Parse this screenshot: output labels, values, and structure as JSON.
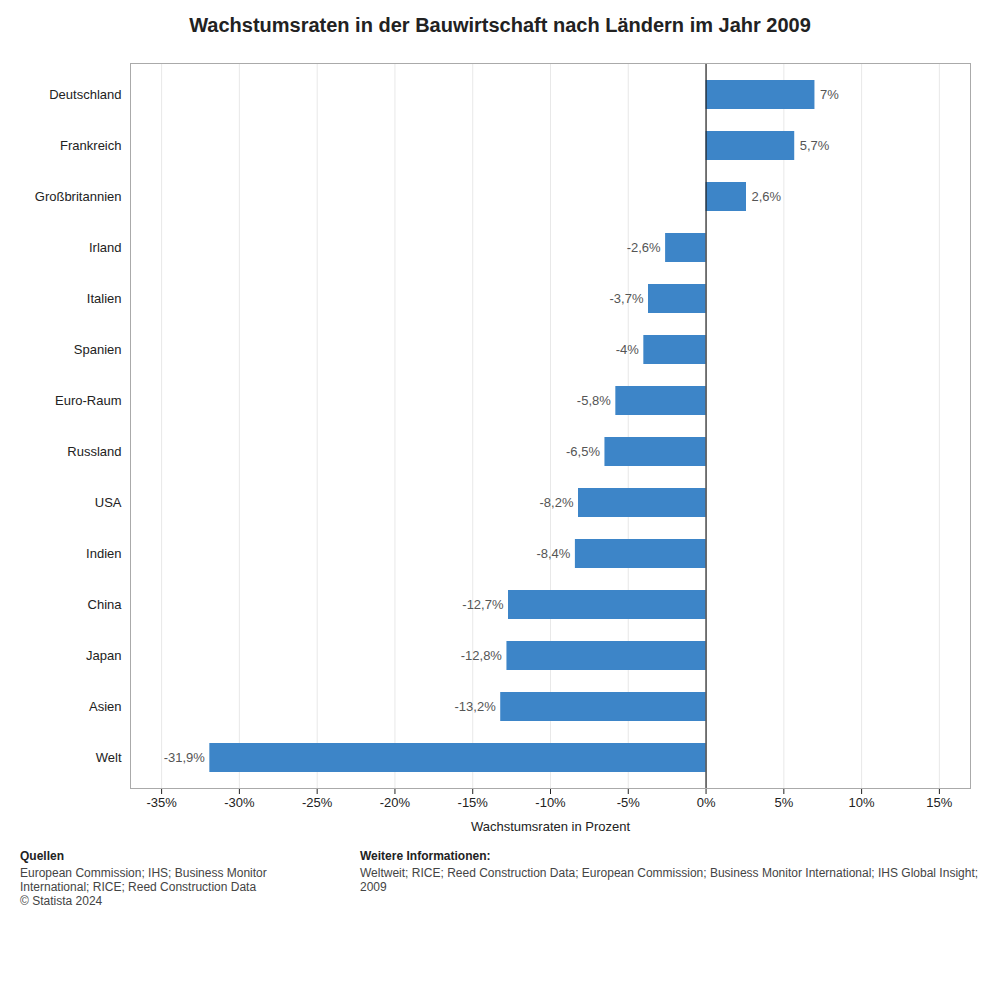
{
  "chart_data": {
    "type": "bar",
    "orientation": "horizontal",
    "title": "Wachstumsraten in der Bauwirtschaft nach Ländern im Jahr 2009",
    "categories": [
      "Deutschland",
      "Frankreich",
      "Großbritannien",
      "Irland",
      "Italien",
      "Spanien",
      "Euro-Raum",
      "Russland",
      "USA",
      "Indien",
      "China",
      "Japan",
      "Asien",
      "Welt"
    ],
    "values": [
      7.0,
      5.7,
      2.6,
      -2.6,
      -3.7,
      -4.0,
      -5.8,
      -6.5,
      -8.2,
      -8.4,
      -12.7,
      -12.8,
      -13.2,
      -31.9
    ],
    "value_labels": [
      "7%",
      "5,7%",
      "2,6%",
      "-2,6%",
      "-3,7%",
      "-4%",
      "-5,8%",
      "-6,5%",
      "-8,2%",
      "-8,4%",
      "-12,7%",
      "-12,8%",
      "-13,2%",
      "-31,9%"
    ],
    "data_labels": true,
    "color": "#3d85c8",
    "xlabel": "Wachstumsraten in Prozent",
    "xlim": [
      -37,
      17
    ],
    "xticks": [
      {
        "value": -35,
        "label": "-35%"
      },
      {
        "value": -30,
        "label": "-30%"
      },
      {
        "value": -25,
        "label": "-25%"
      },
      {
        "value": -20,
        "label": "-20%"
      },
      {
        "value": -15,
        "label": "-15%"
      },
      {
        "value": -10,
        "label": "-10%"
      },
      {
        "value": -5,
        "label": "-5%"
      },
      {
        "value": 0,
        "label": "0%"
      },
      {
        "value": 5,
        "label": "5%"
      },
      {
        "value": 10,
        "label": "10%"
      },
      {
        "value": 15,
        "label": "15%"
      }
    ],
    "grid": true,
    "annotations": [
      "Quellen",
      "European Commission; IHS; Business Monitor\nInternational; RICE; Reed Construction Data\n© Statista 2024",
      "Weitere Informationen:",
      "Weltweit; RICE; Reed Construction Data; European Commission; Business Monitor International; IHS Global Insight; 2009"
    ]
  }
}
